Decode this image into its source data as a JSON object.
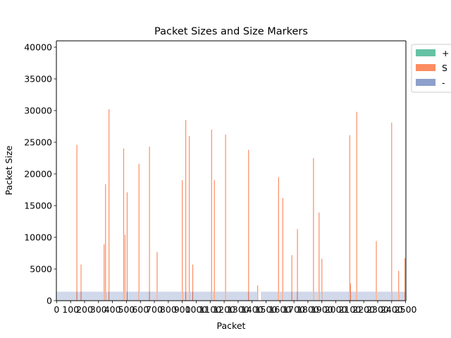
{
  "chart_data": {
    "type": "bar",
    "title": "Packet Sizes and Size Markers",
    "xlabel": "Packet",
    "ylabel": "Packet Size",
    "xlim": [
      -2,
      2502
    ],
    "ylim": [
      0,
      41000
    ],
    "grid": false,
    "legend_placement": "outside upper-right",
    "x_ticks": [
      0,
      100,
      200,
      300,
      400,
      500,
      600,
      700,
      800,
      900,
      1000,
      1100,
      1200,
      1300,
      1400,
      1500,
      1600,
      1700,
      1800,
      1900,
      2000,
      2100,
      2200,
      2300,
      2400,
      2500
    ],
    "y_ticks": [
      0,
      5000,
      10000,
      15000,
      20000,
      25000,
      30000,
      35000,
      40000
    ],
    "series": [
      {
        "name": "+",
        "color": "#66c2a5",
        "points": []
      },
      {
        "name": "S",
        "color": "#fc8d62",
        "points": [
          [
            145,
            24600
          ],
          [
            175,
            5700
          ],
          [
            340,
            8900
          ],
          [
            350,
            18400
          ],
          [
            375,
            30200
          ],
          [
            480,
            24000
          ],
          [
            490,
            10400
          ],
          [
            505,
            17100
          ],
          [
            590,
            21600
          ],
          [
            665,
            24300
          ],
          [
            720,
            7700
          ],
          [
            900,
            19000
          ],
          [
            925,
            28500
          ],
          [
            950,
            26000
          ],
          [
            975,
            5700
          ],
          [
            1110,
            27000
          ],
          [
            1130,
            19000
          ],
          [
            1210,
            26200
          ],
          [
            1375,
            23800
          ],
          [
            1440,
            2400
          ],
          [
            1590,
            19500
          ],
          [
            1620,
            16200
          ],
          [
            1685,
            7200
          ],
          [
            1725,
            11300
          ],
          [
            1840,
            22500
          ],
          [
            1880,
            13900
          ],
          [
            1900,
            6600
          ],
          [
            2100,
            26100
          ],
          [
            2105,
            2700
          ],
          [
            2150,
            29800
          ],
          [
            2290,
            9400
          ],
          [
            2400,
            28100
          ],
          [
            2450,
            4700
          ],
          [
            2495,
            6700
          ]
        ]
      },
      {
        "name": "-",
        "color": "#8da0cb",
        "baseline_value": 1420,
        "spacing": 10,
        "gaps": [
          [
            1450,
            1460
          ]
        ]
      }
    ]
  }
}
